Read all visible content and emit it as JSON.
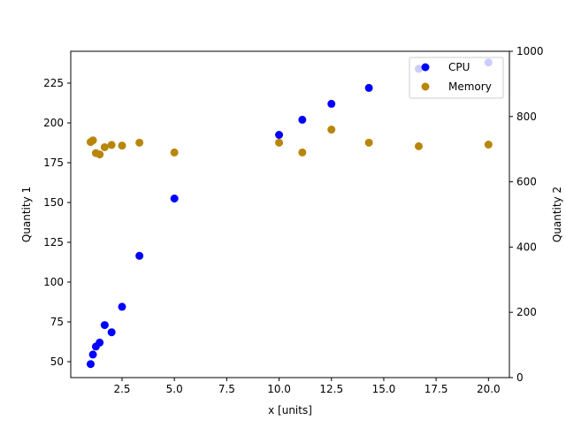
{
  "chart_data": {
    "type": "scatter",
    "title": "",
    "xlabel": "x [units]",
    "ylabel_left": "Quantity 1",
    "ylabel_right": "Quantity 2",
    "xlim": [
      0.05,
      21.0
    ],
    "ylim_left": [
      40,
      245
    ],
    "ylim_right": [
      0,
      1000
    ],
    "x_ticks": [
      2.5,
      5.0,
      7.5,
      10.0,
      12.5,
      15.0,
      17.5,
      20.0
    ],
    "x_tick_labels": [
      "2.5",
      "5.0",
      "7.5",
      "10.0",
      "12.5",
      "15.0",
      "17.5",
      "20.0"
    ],
    "y_left_ticks": [
      50,
      75,
      100,
      125,
      150,
      175,
      200,
      225
    ],
    "y_left_tick_labels": [
      "50",
      "75",
      "100",
      "125",
      "150",
      "175",
      "200",
      "225"
    ],
    "y_right_ticks": [
      0,
      200,
      400,
      600,
      800,
      1000
    ],
    "y_right_tick_labels": [
      "0",
      "200",
      "400",
      "600",
      "800",
      "1000"
    ],
    "grid": false,
    "legend_position": "top-right",
    "series": [
      {
        "name": "CPU",
        "axis": "left",
        "color": "#0000ff",
        "x": [
          1.0,
          1.11,
          1.25,
          1.43,
          1.67,
          2.0,
          2.5,
          3.33,
          5.0,
          10.0,
          11.11,
          12.5,
          14.29,
          16.67,
          20.0
        ],
        "y": [
          48.5,
          54.5,
          59.5,
          62.0,
          73.0,
          68.5,
          84.5,
          116.5,
          152.5,
          192.5,
          202.0,
          212.0,
          222.0,
          234.0,
          238.0
        ]
      },
      {
        "name": "Memory",
        "axis": "right",
        "color": "#b8860b",
        "x": [
          1.0,
          1.11,
          1.25,
          1.43,
          1.67,
          2.0,
          2.5,
          3.33,
          5.0,
          10.0,
          11.11,
          12.5,
          14.29,
          16.67,
          20.0
        ],
        "y": [
          722,
          727,
          688,
          684,
          706,
          713,
          711,
          720,
          690,
          720,
          690,
          760,
          720,
          709,
          714
        ]
      }
    ]
  }
}
